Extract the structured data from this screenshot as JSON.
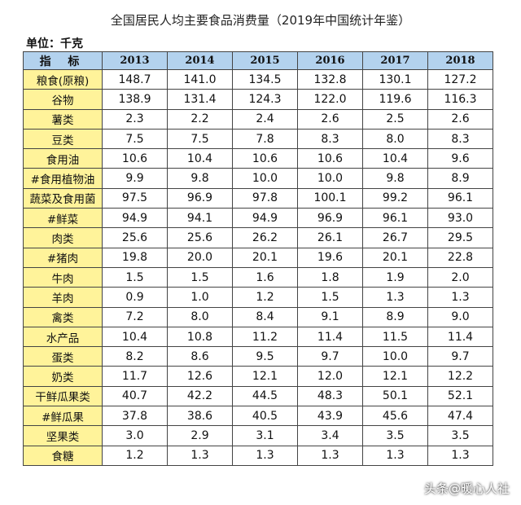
{
  "title": "全国居民人均主要食品消费量（2019年中国统计年鉴）",
  "unit_label": "单位：千克",
  "table": {
    "header_label": "指 标",
    "years": [
      "2013",
      "2014",
      "2015",
      "2016",
      "2017",
      "2018"
    ],
    "rows": [
      {
        "label": "粮食(原粮)",
        "values": [
          "148.7",
          "141.0",
          "134.5",
          "132.8",
          "130.1",
          "127.2"
        ]
      },
      {
        "label": "谷物",
        "values": [
          "138.9",
          "131.4",
          "124.3",
          "122.0",
          "119.6",
          "116.3"
        ]
      },
      {
        "label": "薯类",
        "values": [
          "2.3",
          "2.2",
          "2.4",
          "2.6",
          "2.5",
          "2.6"
        ]
      },
      {
        "label": "豆类",
        "values": [
          "7.5",
          "7.5",
          "7.8",
          "8.3",
          "8.0",
          "8.3"
        ]
      },
      {
        "label": "食用油",
        "values": [
          "10.6",
          "10.4",
          "10.6",
          "10.6",
          "10.4",
          "9.6"
        ]
      },
      {
        "label": "#食用植物油",
        "values": [
          "9.9",
          "9.8",
          "10.0",
          "10.0",
          "9.8",
          "8.9"
        ]
      },
      {
        "label": "蔬菜及食用菌",
        "values": [
          "97.5",
          "96.9",
          "97.8",
          "100.1",
          "99.2",
          "96.1"
        ]
      },
      {
        "label": "#鲜菜",
        "values": [
          "94.9",
          "94.1",
          "94.9",
          "96.9",
          "96.1",
          "93.0"
        ]
      },
      {
        "label": "肉类",
        "values": [
          "25.6",
          "25.6",
          "26.2",
          "26.1",
          "26.7",
          "29.5"
        ]
      },
      {
        "label": "#猪肉",
        "values": [
          "19.8",
          "20.0",
          "20.1",
          "19.6",
          "20.1",
          "22.8"
        ]
      },
      {
        "label": "牛肉",
        "values": [
          "1.5",
          "1.5",
          "1.6",
          "1.8",
          "1.9",
          "2.0"
        ]
      },
      {
        "label": "羊肉",
        "values": [
          "0.9",
          "1.0",
          "1.2",
          "1.5",
          "1.3",
          "1.3"
        ]
      },
      {
        "label": "禽类",
        "values": [
          "7.2",
          "8.0",
          "8.4",
          "9.1",
          "8.9",
          "9.0"
        ]
      },
      {
        "label": "水产品",
        "values": [
          "10.4",
          "10.8",
          "11.2",
          "11.4",
          "11.5",
          "11.4"
        ]
      },
      {
        "label": "蛋类",
        "values": [
          "8.2",
          "8.6",
          "9.5",
          "9.7",
          "10.0",
          "9.7"
        ]
      },
      {
        "label": "奶类",
        "values": [
          "11.7",
          "12.6",
          "12.1",
          "12.0",
          "12.1",
          "12.2"
        ]
      },
      {
        "label": "干鲜瓜果类",
        "values": [
          "40.7",
          "42.2",
          "44.5",
          "48.3",
          "50.1",
          "52.1"
        ]
      },
      {
        "label": "#鲜瓜果",
        "values": [
          "37.8",
          "38.6",
          "40.5",
          "43.9",
          "45.6",
          "47.4"
        ]
      },
      {
        "label": "坚果类",
        "values": [
          "3.0",
          "2.9",
          "3.1",
          "3.4",
          "3.5",
          "3.5"
        ]
      },
      {
        "label": "食糖",
        "values": [
          "1.2",
          "1.3",
          "1.3",
          "1.3",
          "1.3",
          "1.3"
        ]
      }
    ]
  },
  "watermark": "头条@暖心人社"
}
